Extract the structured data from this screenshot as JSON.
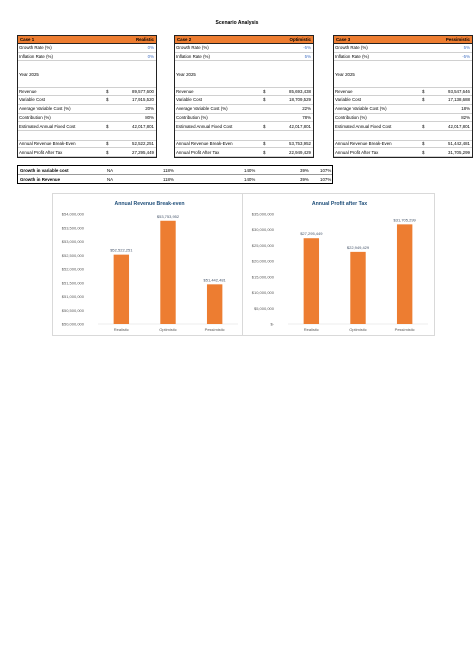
{
  "title": "Scenario Analysis",
  "cases": [
    {
      "label": "Case 1",
      "scenario": "Realistic",
      "growth_rate_label": "Growth Rate (%)",
      "growth_rate": "0%",
      "inflation_rate_label": "Inflation Rate (%)",
      "inflation_rate": "0%",
      "year_label": "Year 2025",
      "revenue_label": "Revenue",
      "revenue_cur": "$",
      "revenue": "89,577,600",
      "variable_cost_label": "Variable Cost",
      "variable_cost_cur": "$",
      "variable_cost": "17,915,520",
      "avg_var_cost_label": "Average Variable Cost (%)",
      "avg_var_cost": "20%",
      "contribution_label": "Contribution (%)",
      "contribution": "80%",
      "fixed_cost_label": "Estimated Annual Fixed Cost",
      "fixed_cost_cur": "$",
      "fixed_cost": "42,017,801",
      "breakeven_label": "Annual Revenue Break-Even",
      "breakeven_cur": "$",
      "breakeven": "52,522,251",
      "profit_label": "Annual Profit After Tax",
      "profit_cur": "$",
      "profit": "27,295,449"
    },
    {
      "label": "Case 2",
      "scenario": "Optimistic",
      "growth_rate_label": "Growth Rate (%)",
      "growth_rate": "-5%",
      "inflation_rate_label": "Inflation Rate (%)",
      "inflation_rate": "5%",
      "year_label": "Year 2025",
      "revenue_label": "Revenue",
      "revenue_cur": "$",
      "revenue": "85,693,438",
      "variable_cost_label": "Variable Cost",
      "variable_cost_cur": "$",
      "variable_cost": "18,709,529",
      "avg_var_cost_label": "Average Variable Cost (%)",
      "avg_var_cost": "22%",
      "contribution_label": "Contribution (%)",
      "contribution": "78%",
      "fixed_cost_label": "Estimated Annual Fixed Cost",
      "fixed_cost_cur": "$",
      "fixed_cost": "42,017,801",
      "breakeven_label": "Annual Revenue Break-Even",
      "breakeven_cur": "$",
      "breakeven": "53,753,952",
      "profit_label": "Annual Profit After Tax",
      "profit_cur": "$",
      "profit": "22,949,429"
    },
    {
      "label": "Case 3",
      "scenario": "Pessimistic",
      "growth_rate_label": "Growth Rate (%)",
      "growth_rate": "5%",
      "inflation_rate_label": "Inflation Rate (%)",
      "inflation_rate": "-5%",
      "year_label": "Year 2025",
      "revenue_label": "Revenue",
      "revenue_cur": "$",
      "revenue": "93,547,646",
      "variable_cost_label": "Variable Cost",
      "variable_cost_cur": "$",
      "variable_cost": "17,138,688",
      "avg_var_cost_label": "Average Variable Cost (%)",
      "avg_var_cost": "18%",
      "contribution_label": "Contribution (%)",
      "contribution": "82%",
      "fixed_cost_label": "Estimated Annual Fixed Cost",
      "fixed_cost_cur": "$",
      "fixed_cost": "42,017,801",
      "breakeven_label": "Annual Revenue Break-Even",
      "breakeven_cur": "$",
      "breakeven": "51,442,481",
      "profit_label": "Annual Profit After Tax",
      "profit_cur": "$",
      "profit": "31,705,299"
    }
  ],
  "growth": {
    "rows": [
      {
        "label": "Growth in variable cost",
        "na": "NA",
        "v1": "118%",
        "v2": "140%",
        "v3": "39%",
        "v4": "107%"
      },
      {
        "label": "Growth in Revenue",
        "na": "NA",
        "v1": "118%",
        "v2": "140%",
        "v3": "39%",
        "v4": "107%"
      }
    ]
  },
  "colors": {
    "accent": "#ed7d31",
    "blue_text": "#4472c4",
    "chart_title": "#1f4e79"
  },
  "chart_data": [
    {
      "type": "bar",
      "title": "Annual Revenue Break-even",
      "categories": [
        "Realistic",
        "Optimistic",
        "Pessimistic"
      ],
      "values": [
        52522251,
        53753952,
        51442481
      ],
      "data_labels": [
        "$52,522,251",
        "$53,753,952",
        "$51,442,481"
      ],
      "ylim": [
        50000000,
        54000000
      ],
      "yticks": [
        50000000,
        50500000,
        51000000,
        51500000,
        52000000,
        52500000,
        53000000,
        53500000,
        54000000
      ],
      "ytick_labels": [
        "$50,000,000",
        "$50,500,000",
        "$51,000,000",
        "$51,500,000",
        "$52,000,000",
        "$52,500,000",
        "$53,000,000",
        "$53,500,000",
        "$54,000,000"
      ],
      "color": "#ed7d31",
      "grid": false
    },
    {
      "type": "bar",
      "title": "Annual Profit after Tax",
      "categories": [
        "Realistic",
        "Optimistic",
        "Pessimistic"
      ],
      "values": [
        27295449,
        22949429,
        31705299
      ],
      "data_labels": [
        "$27,295,449",
        "$22,949,429",
        "$31,705,299"
      ],
      "ylim": [
        0,
        35000000
      ],
      "yticks": [
        0,
        5000000,
        10000000,
        15000000,
        20000000,
        25000000,
        30000000,
        35000000
      ],
      "ytick_labels": [
        "$-",
        "$5,000,000",
        "$10,000,000",
        "$15,000,000",
        "$20,000,000",
        "$25,000,000",
        "$30,000,000",
        "$35,000,000"
      ],
      "color": "#ed7d31",
      "grid": false
    }
  ]
}
